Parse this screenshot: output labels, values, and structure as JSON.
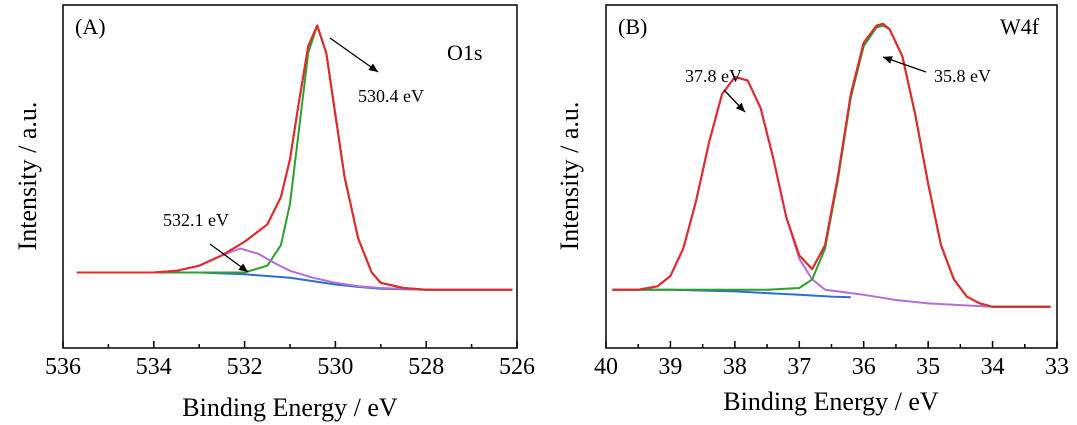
{
  "chart_data": [
    {
      "type": "line",
      "panel_label": "(A)",
      "title": "O1s",
      "xlabel": "Binding Energy / eV",
      "ylabel": "Intensity / a.u.",
      "xlim": [
        536,
        526
      ],
      "ylim": [
        0,
        1
      ],
      "x_reversed": true,
      "xticks": [
        536,
        534,
        532,
        530,
        528,
        526
      ],
      "ytick_labels": false,
      "grid": false,
      "annotations": [
        {
          "text": "530.4 eV",
          "x": 530.4
        },
        {
          "text": "532.1 eV",
          "x": 532.1
        }
      ],
      "series": [
        {
          "role": "raw",
          "color": "#3a3a3a",
          "x": [
            535.7,
            535,
            534.5,
            534,
            533.5,
            533,
            532.5,
            532,
            531.5,
            531.2,
            531,
            530.8,
            530.6,
            530.4,
            530.2,
            530,
            529.8,
            529.5,
            529.2,
            529,
            528.5,
            528,
            527.5,
            527,
            526.5,
            526.1
          ],
          "values": [
            0.22,
            0.22,
            0.22,
            0.22,
            0.225,
            0.24,
            0.27,
            0.31,
            0.36,
            0.44,
            0.55,
            0.72,
            0.88,
            0.94,
            0.86,
            0.68,
            0.5,
            0.32,
            0.22,
            0.19,
            0.175,
            0.17,
            0.17,
            0.17,
            0.17,
            0.17
          ]
        },
        {
          "role": "envelope",
          "color": "#e8282b",
          "x": [
            535.7,
            535,
            534.5,
            534,
            533.5,
            533,
            532.5,
            532,
            531.5,
            531.2,
            531,
            530.8,
            530.6,
            530.4,
            530.2,
            530,
            529.8,
            529.5,
            529.2,
            529,
            528.5,
            528,
            527.5,
            527,
            526.5,
            526.1
          ],
          "values": [
            0.22,
            0.22,
            0.22,
            0.22,
            0.225,
            0.24,
            0.27,
            0.31,
            0.36,
            0.44,
            0.55,
            0.72,
            0.88,
            0.94,
            0.86,
            0.68,
            0.5,
            0.32,
            0.22,
            0.19,
            0.175,
            0.17,
            0.17,
            0.17,
            0.17,
            0.17
          ]
        },
        {
          "role": "component-530.4",
          "color": "#2ca02c",
          "x": [
            534,
            533,
            532,
            531.5,
            531.2,
            531,
            530.8,
            530.6,
            530.4,
            530.2,
            530,
            529.8,
            529.5,
            529.2,
            529,
            528.5,
            528,
            527,
            526.1
          ],
          "values": [
            0.22,
            0.22,
            0.22,
            0.24,
            0.3,
            0.42,
            0.64,
            0.86,
            0.94,
            0.86,
            0.68,
            0.5,
            0.32,
            0.22,
            0.19,
            0.175,
            0.17,
            0.17,
            0.17
          ]
        },
        {
          "role": "component-532.1",
          "color": "#b36fd6",
          "x": [
            535.7,
            534,
            533.5,
            533,
            532.5,
            532.1,
            531.7,
            531.3,
            531,
            530.5,
            530,
            529.5,
            529,
            528,
            527,
            526.1
          ],
          "values": [
            0.22,
            0.22,
            0.225,
            0.24,
            0.27,
            0.29,
            0.275,
            0.245,
            0.225,
            0.205,
            0.19,
            0.18,
            0.175,
            0.17,
            0.17,
            0.17
          ]
        },
        {
          "role": "background",
          "color": "#2a6fd6",
          "x": [
            535.7,
            534,
            533,
            532,
            531,
            530.5,
            530,
            529.5,
            529,
            528,
            527,
            526.1
          ],
          "values": [
            0.22,
            0.22,
            0.22,
            0.215,
            0.205,
            0.195,
            0.185,
            0.178,
            0.173,
            0.17,
            0.17,
            0.17
          ]
        }
      ]
    },
    {
      "type": "line",
      "panel_label": "(B)",
      "title": "W4f",
      "xlabel": "Binding Energy / eV",
      "ylabel": "Intensity / a.u.",
      "xlim": [
        40,
        33
      ],
      "ylim": [
        0,
        1
      ],
      "x_reversed": true,
      "xticks": [
        40,
        39,
        38,
        37,
        36,
        35,
        34,
        33
      ],
      "ytick_labels": false,
      "grid": false,
      "annotations": [
        {
          "text": "37.8 eV",
          "x": 37.8
        },
        {
          "text": "35.8 eV",
          "x": 35.7
        }
      ],
      "series": [
        {
          "role": "raw",
          "color": "#3a3a3a",
          "x": [
            39.9,
            39.5,
            39.2,
            39,
            38.8,
            38.6,
            38.4,
            38.2,
            38,
            37.8,
            37.6,
            37.4,
            37.2,
            37,
            36.8,
            36.6,
            36.4,
            36.2,
            36,
            35.8,
            35.7,
            35.6,
            35.4,
            35.2,
            35,
            34.8,
            34.6,
            34.4,
            34.2,
            34,
            33.5,
            33.1
          ],
          "values": [
            0.17,
            0.17,
            0.18,
            0.21,
            0.29,
            0.43,
            0.6,
            0.74,
            0.79,
            0.78,
            0.7,
            0.55,
            0.38,
            0.27,
            0.23,
            0.3,
            0.5,
            0.74,
            0.89,
            0.94,
            0.945,
            0.93,
            0.85,
            0.68,
            0.48,
            0.3,
            0.2,
            0.15,
            0.13,
            0.12,
            0.12,
            0.12
          ]
        },
        {
          "role": "envelope",
          "color": "#e8282b",
          "x": [
            39.9,
            39.5,
            39.2,
            39,
            38.8,
            38.6,
            38.4,
            38.2,
            38,
            37.8,
            37.6,
            37.4,
            37.2,
            37,
            36.8,
            36.6,
            36.4,
            36.2,
            36,
            35.8,
            35.7,
            35.6,
            35.4,
            35.2,
            35,
            34.8,
            34.6,
            34.4,
            34.2,
            34,
            33.5,
            33.1
          ],
          "values": [
            0.17,
            0.17,
            0.18,
            0.21,
            0.29,
            0.43,
            0.6,
            0.74,
            0.79,
            0.78,
            0.7,
            0.55,
            0.38,
            0.27,
            0.23,
            0.3,
            0.5,
            0.74,
            0.89,
            0.94,
            0.945,
            0.93,
            0.85,
            0.68,
            0.48,
            0.3,
            0.2,
            0.15,
            0.13,
            0.12,
            0.12,
            0.12
          ]
        },
        {
          "role": "component-37.8",
          "color": "#b36fd6",
          "x": [
            39.9,
            39.5,
            39.2,
            39,
            38.8,
            38.6,
            38.4,
            38.2,
            38,
            37.8,
            37.6,
            37.4,
            37.2,
            37,
            36.8,
            36.6,
            36.4,
            36.2,
            36,
            35.5,
            35,
            34.5,
            34,
            33.5,
            33.1
          ],
          "values": [
            0.17,
            0.17,
            0.18,
            0.21,
            0.29,
            0.43,
            0.6,
            0.74,
            0.79,
            0.78,
            0.7,
            0.55,
            0.38,
            0.26,
            0.2,
            0.17,
            0.165,
            0.16,
            0.155,
            0.14,
            0.13,
            0.125,
            0.12,
            0.12,
            0.12
          ]
        },
        {
          "role": "component-35.8",
          "color": "#2ca02c",
          "x": [
            39.9,
            38,
            37.5,
            37,
            36.8,
            36.6,
            36.4,
            36.2,
            36,
            35.8,
            35.7,
            35.6,
            35.4,
            35.2,
            35,
            34.8,
            34.6,
            34.4,
            34.2,
            34,
            33.5,
            33.1
          ],
          "values": [
            0.17,
            0.17,
            0.17,
            0.175,
            0.2,
            0.29,
            0.49,
            0.73,
            0.88,
            0.935,
            0.94,
            0.93,
            0.85,
            0.68,
            0.48,
            0.3,
            0.2,
            0.15,
            0.13,
            0.12,
            0.12,
            0.12
          ]
        },
        {
          "role": "background",
          "color": "#2a6fd6",
          "x": [
            39.9,
            39,
            38,
            37.5,
            37,
            36.5,
            36.2
          ],
          "values": [
            0.17,
            0.17,
            0.165,
            0.16,
            0.155,
            0.15,
            0.148
          ]
        }
      ]
    }
  ]
}
